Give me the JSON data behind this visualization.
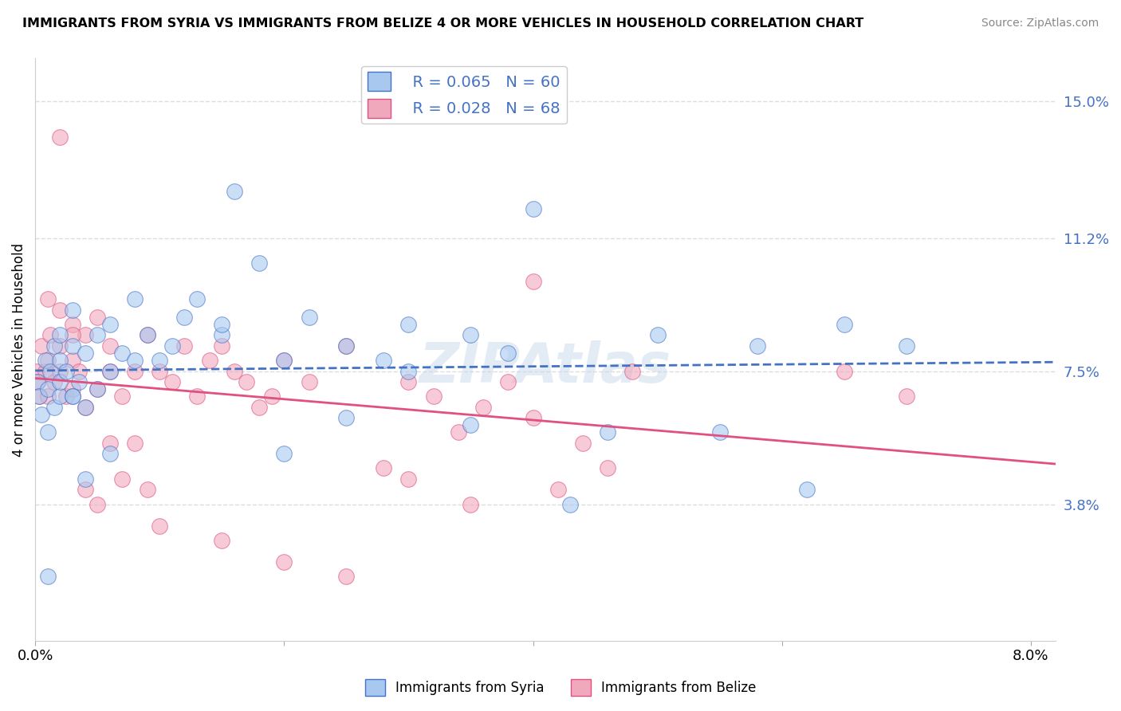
{
  "title": "IMMIGRANTS FROM SYRIA VS IMMIGRANTS FROM BELIZE 4 OR MORE VEHICLES IN HOUSEHOLD CORRELATION CHART",
  "source": "Source: ZipAtlas.com",
  "ylabel": "4 or more Vehicles in Household",
  "xlim": [
    0.0,
    0.082
  ],
  "ylim": [
    0.0,
    0.162
  ],
  "xtick_positions": [
    0.0,
    0.02,
    0.04,
    0.06,
    0.08
  ],
  "xtick_labels": [
    "0.0%",
    "",
    "",
    "",
    "8.0%"
  ],
  "ytick_vals_right": [
    0.038,
    0.075,
    0.112,
    0.15
  ],
  "ytick_labels_right": [
    "3.8%",
    "7.5%",
    "11.2%",
    "15.0%"
  ],
  "legend_syria_R": "R = 0.065",
  "legend_syria_N": "N = 60",
  "legend_belize_R": "R = 0.028",
  "legend_belize_N": "N = 68",
  "color_syria": "#A8C8F0",
  "color_belize": "#F0A8BC",
  "color_syria_line": "#4472C4",
  "color_belize_line": "#E05080",
  "color_legend_text": "#4472C4",
  "background_color": "#FFFFFF",
  "grid_color": "#DDDDDD",
  "syria_x": [
    0.0002,
    0.0003,
    0.0005,
    0.0008,
    0.001,
    0.001,
    0.0012,
    0.0015,
    0.0015,
    0.002,
    0.002,
    0.002,
    0.002,
    0.0025,
    0.003,
    0.003,
    0.003,
    0.0035,
    0.004,
    0.004,
    0.005,
    0.005,
    0.006,
    0.006,
    0.007,
    0.008,
    0.009,
    0.01,
    0.011,
    0.012,
    0.013,
    0.015,
    0.016,
    0.018,
    0.02,
    0.022,
    0.025,
    0.028,
    0.03,
    0.035,
    0.038,
    0.04,
    0.043,
    0.046,
    0.05,
    0.055,
    0.058,
    0.062,
    0.065,
    0.07,
    0.015,
    0.02,
    0.025,
    0.03,
    0.035,
    0.008,
    0.004,
    0.006,
    0.003,
    0.001
  ],
  "syria_y": [
    0.072,
    0.068,
    0.063,
    0.078,
    0.058,
    0.07,
    0.075,
    0.065,
    0.082,
    0.068,
    0.078,
    0.085,
    0.072,
    0.075,
    0.068,
    0.082,
    0.092,
    0.072,
    0.065,
    0.08,
    0.07,
    0.085,
    0.075,
    0.088,
    0.08,
    0.095,
    0.085,
    0.078,
    0.082,
    0.09,
    0.095,
    0.085,
    0.125,
    0.105,
    0.078,
    0.09,
    0.082,
    0.078,
    0.075,
    0.06,
    0.08,
    0.12,
    0.038,
    0.058,
    0.085,
    0.058,
    0.082,
    0.042,
    0.088,
    0.082,
    0.088,
    0.052,
    0.062,
    0.088,
    0.085,
    0.078,
    0.045,
    0.052,
    0.068,
    0.018
  ],
  "belize_x": [
    0.0001,
    0.0002,
    0.0003,
    0.0005,
    0.0008,
    0.001,
    0.001,
    0.0012,
    0.0015,
    0.002,
    0.002,
    0.002,
    0.0025,
    0.003,
    0.003,
    0.003,
    0.0035,
    0.004,
    0.004,
    0.005,
    0.005,
    0.006,
    0.006,
    0.007,
    0.008,
    0.009,
    0.01,
    0.011,
    0.012,
    0.013,
    0.014,
    0.015,
    0.016,
    0.017,
    0.018,
    0.019,
    0.02,
    0.022,
    0.025,
    0.028,
    0.03,
    0.032,
    0.034,
    0.036,
    0.038,
    0.04,
    0.042,
    0.044,
    0.046,
    0.048,
    0.001,
    0.002,
    0.003,
    0.004,
    0.005,
    0.006,
    0.007,
    0.008,
    0.009,
    0.01,
    0.015,
    0.02,
    0.025,
    0.03,
    0.035,
    0.04,
    0.065,
    0.07
  ],
  "belize_y": [
    0.075,
    0.072,
    0.068,
    0.082,
    0.075,
    0.068,
    0.078,
    0.085,
    0.072,
    0.14,
    0.075,
    0.082,
    0.068,
    0.07,
    0.078,
    0.088,
    0.075,
    0.065,
    0.085,
    0.07,
    0.09,
    0.075,
    0.082,
    0.068,
    0.075,
    0.085,
    0.075,
    0.072,
    0.082,
    0.068,
    0.078,
    0.082,
    0.075,
    0.072,
    0.065,
    0.068,
    0.078,
    0.072,
    0.082,
    0.048,
    0.072,
    0.068,
    0.058,
    0.065,
    0.072,
    0.062,
    0.042,
    0.055,
    0.048,
    0.075,
    0.095,
    0.092,
    0.085,
    0.042,
    0.038,
    0.055,
    0.045,
    0.055,
    0.042,
    0.032,
    0.028,
    0.022,
    0.018,
    0.045,
    0.038,
    0.1,
    0.075,
    0.068
  ]
}
